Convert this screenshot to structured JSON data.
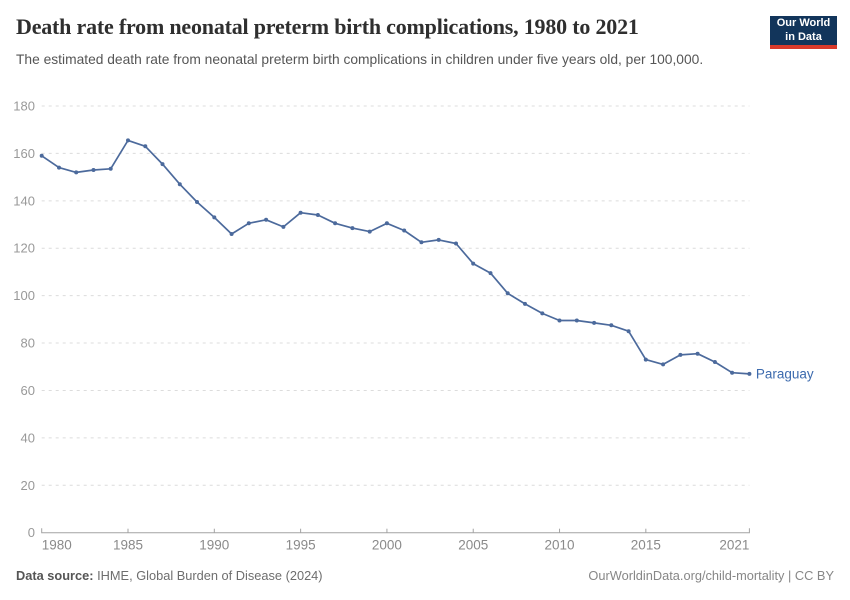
{
  "header": {
    "title": "Death rate from neonatal preterm birth complications, 1980 to 2021",
    "subtitle": "The estimated death rate from neonatal preterm birth complications in children under five years old, per 100,000.",
    "logo": {
      "line1": "Our World",
      "line2": "in Data",
      "bg_color": "#12355b",
      "accent_color": "#d93a2b"
    }
  },
  "footer": {
    "datasource_label": "Data source:",
    "datasource_value": " IHME, Global Burden of Disease (2024)",
    "attribution": "OurWorldinData.org/child-mortality | CC BY"
  },
  "chart_data": {
    "type": "line",
    "title": "Death rate from neonatal preterm birth complications, 1980 to 2021",
    "subtitle": "The estimated death rate from neonatal preterm birth complications in children under five years old, per 100,000.",
    "xlabel": "",
    "ylabel": "",
    "xlim": [
      1980,
      2021
    ],
    "ylim": [
      0,
      180
    ],
    "x_ticks": [
      1980,
      1985,
      1990,
      1995,
      2000,
      2005,
      2010,
      2015,
      2021
    ],
    "y_ticks": [
      0,
      20,
      40,
      60,
      80,
      100,
      120,
      140,
      160,
      180
    ],
    "grid": "horizontal-dashed",
    "legend_position": "end-of-line-label",
    "series": [
      {
        "name": "Paraguay",
        "color": "#4C6A9C",
        "label_color": "#3d6bae",
        "x": [
          1980,
          1981,
          1982,
          1983,
          1984,
          1985,
          1986,
          1987,
          1988,
          1989,
          1990,
          1991,
          1992,
          1993,
          1994,
          1995,
          1996,
          1997,
          1998,
          1999,
          2000,
          2001,
          2002,
          2003,
          2004,
          2005,
          2006,
          2007,
          2008,
          2009,
          2010,
          2011,
          2012,
          2013,
          2014,
          2015,
          2016,
          2017,
          2018,
          2019,
          2020,
          2021
        ],
        "values": [
          159,
          154,
          152,
          153,
          153.5,
          165.5,
          163,
          155.5,
          147,
          139.5,
          133,
          126,
          130.5,
          132,
          129,
          135,
          134,
          130.5,
          128.5,
          127,
          130.5,
          127.5,
          122.5,
          123.5,
          122,
          113.5,
          109.5,
          101,
          96.5,
          92.5,
          89.5,
          89.5,
          88.5,
          87.5,
          85,
          73,
          71,
          75,
          75.5,
          72,
          67.5,
          67
        ]
      }
    ],
    "theme_colors": {
      "gridline": "#dcdcdc",
      "axis_line": "#a3a3a3",
      "tick_label": "#999999"
    }
  }
}
